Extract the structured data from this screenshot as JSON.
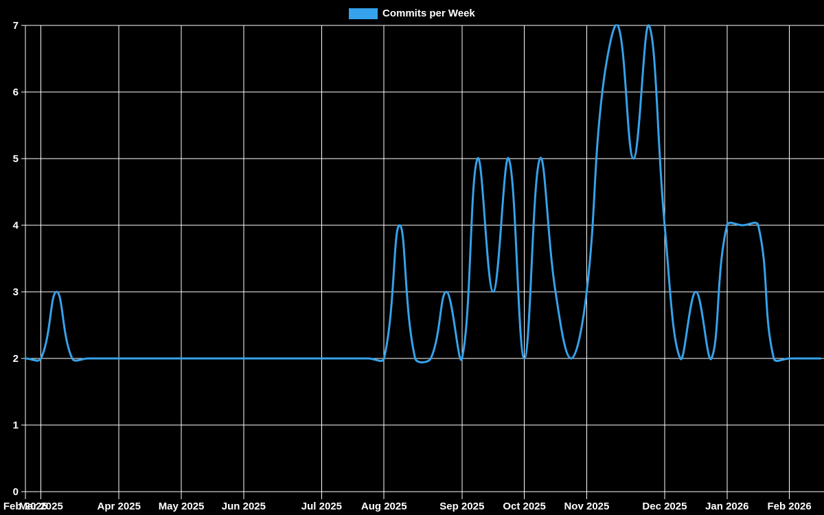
{
  "legend": {
    "label": "Commits per Week",
    "swatch_color": "#36a2eb"
  },
  "chart_data": {
    "type": "line",
    "title": "Commits per Week",
    "background": "#000000",
    "grid_color": "#ffffff",
    "text_color": "#ffffff",
    "line_color": "#36a2eb",
    "line_width": 3,
    "tension": 0.4,
    "xlabel": "",
    "ylabel": "",
    "ylim": [
      0,
      7
    ],
    "y_ticks": [
      0,
      1,
      2,
      3,
      4,
      5,
      6,
      7
    ],
    "num_points": 52,
    "series": [
      {
        "name": "Commits per Week",
        "values": [
          2,
          2,
          3,
          2,
          2,
          2,
          2,
          2,
          2,
          2,
          2,
          2,
          2,
          2,
          2,
          2,
          2,
          2,
          2,
          2,
          2,
          2,
          2,
          2,
          4,
          2,
          2,
          3,
          2,
          5,
          3,
          5,
          2,
          5,
          3,
          2,
          3,
          6,
          7,
          5,
          7,
          4,
          2,
          3,
          2,
          4,
          4,
          4,
          2,
          2,
          2,
          2
        ]
      }
    ],
    "x_ticks": [
      {
        "index": 0,
        "label": "Feb 2025"
      },
      {
        "index": 1,
        "label": "Mar 2025"
      },
      {
        "index": 6,
        "label": "Apr 2025"
      },
      {
        "index": 10,
        "label": "May 2025"
      },
      {
        "index": 14,
        "label": "Jun 2025"
      },
      {
        "index": 19,
        "label": "Jul 2025"
      },
      {
        "index": 23,
        "label": "Aug 2025"
      },
      {
        "index": 28,
        "label": "Sep 2025"
      },
      {
        "index": 32,
        "label": "Oct 2025"
      },
      {
        "index": 36,
        "label": "Nov 2025"
      },
      {
        "index": 41,
        "label": "Dec 2025"
      },
      {
        "index": 45,
        "label": "Jan 2026"
      },
      {
        "index": 49,
        "label": "Feb 2026"
      }
    ]
  }
}
